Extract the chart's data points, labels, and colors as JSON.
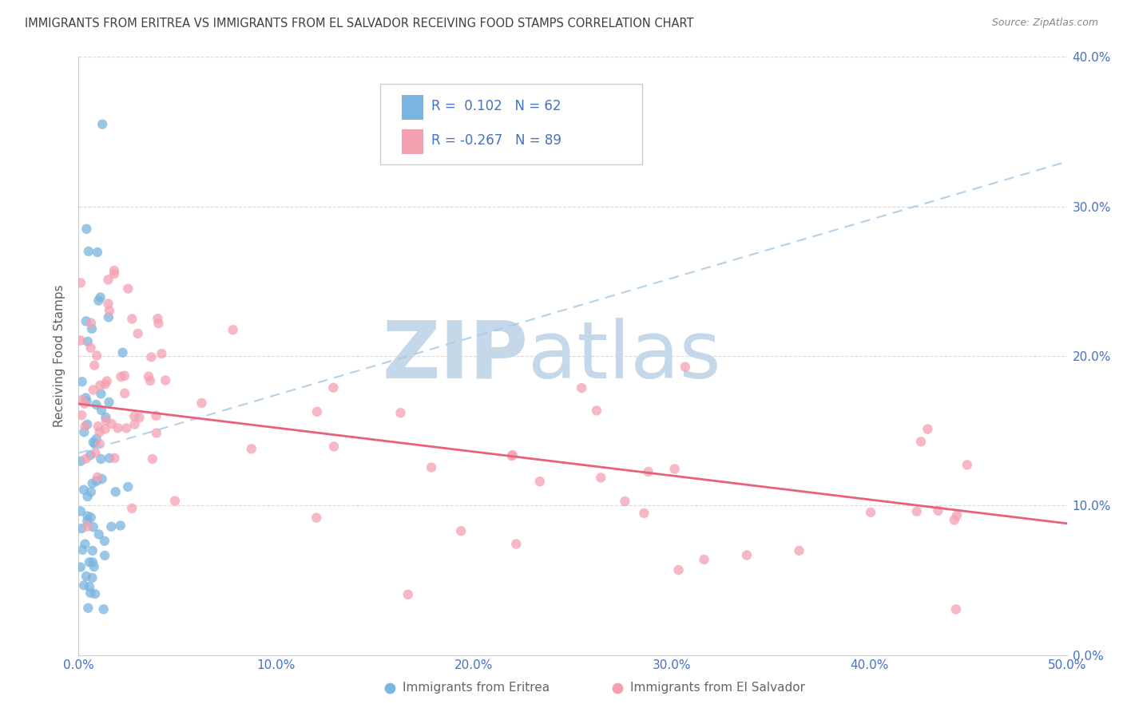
{
  "title": "IMMIGRANTS FROM ERITREA VS IMMIGRANTS FROM EL SALVADOR RECEIVING FOOD STAMPS CORRELATION CHART",
  "source": "Source: ZipAtlas.com",
  "ylabel_left": "Receiving Food Stamps",
  "xlim": [
    0.0,
    0.5
  ],
  "ylim": [
    0.0,
    0.4
  ],
  "xtick_vals": [
    0.0,
    0.1,
    0.2,
    0.3,
    0.4,
    0.5
  ],
  "ytick_vals": [
    0.0,
    0.1,
    0.2,
    0.3,
    0.4
  ],
  "R_eritrea": 0.102,
  "N_eritrea": 62,
  "R_salvador": -0.267,
  "N_salvador": 89,
  "color_eritrea": "#7ab5e0",
  "color_salvador": "#f4a0b0",
  "color_eritrea_line": "#aacce8",
  "color_salvador_line": "#e8607a",
  "watermark_zip_color": "#c5d8ea",
  "watermark_atlas_color": "#c5d8ea",
  "tick_color": "#4472c4",
  "grid_color": "#d0d0d0",
  "legend_border_color": "#cccccc",
  "title_color": "#404040",
  "source_color": "#888888",
  "ylabel_color": "#606060"
}
